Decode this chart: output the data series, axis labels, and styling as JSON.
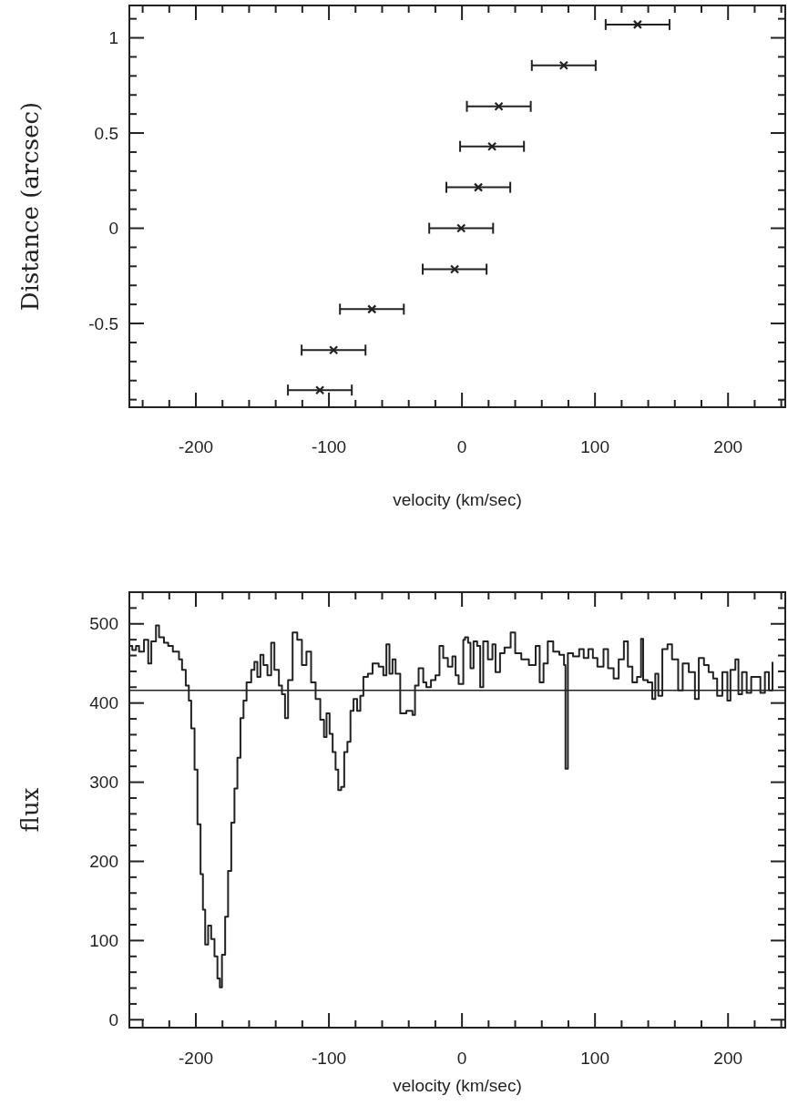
{
  "chart_data": [
    {
      "type": "scatter",
      "xlabel": "velocity (km/sec)",
      "ylabel": "Distance (arcsec)",
      "marker": "cross",
      "color": "#222222",
      "x": [
        132,
        76.5,
        27.7,
        22.6,
        12.3,
        -0.6,
        -5.5,
        -67.7,
        -96.5,
        -106.8
      ],
      "values": [
        1.07,
        0.855,
        0.64,
        0.43,
        0.215,
        0,
        -0.215,
        -0.425,
        -0.64,
        -0.85
      ],
      "xerrors": [
        24,
        24,
        24,
        24,
        24,
        24,
        24,
        24,
        24,
        24
      ],
      "xlim": [
        -250,
        243
      ],
      "ylim": [
        -0.94,
        1.17
      ],
      "xticks": [
        {
          "value": -240,
          "label": null
        },
        {
          "value": -220,
          "label": null
        },
        -200,
        {
          "value": -180,
          "label": null
        },
        {
          "value": -160,
          "label": null
        },
        {
          "value": -140,
          "label": null
        },
        {
          "value": -120,
          "label": null
        },
        -100,
        {
          "value": -80,
          "label": null
        },
        {
          "value": -60,
          "label": null
        },
        {
          "value": -40,
          "label": null
        },
        {
          "value": -20,
          "label": null
        },
        0,
        {
          "value": 20,
          "label": null
        },
        {
          "value": 40,
          "label": null
        },
        {
          "value": 60,
          "label": null
        },
        {
          "value": 80,
          "label": null
        },
        100,
        {
          "value": 120,
          "label": null
        },
        {
          "value": 140,
          "label": null
        },
        {
          "value": 160,
          "label": null
        },
        {
          "value": 180,
          "label": null
        },
        200,
        {
          "value": 220,
          "label": null
        },
        {
          "value": 240,
          "label": null
        }
      ],
      "yticks": [
        {
          "value": -0.9,
          "label": null
        },
        {
          "value": -0.8,
          "label": null
        },
        {
          "value": -0.7,
          "label": null
        },
        {
          "value": -0.6,
          "label": null
        },
        -0.5,
        {
          "value": -0.4,
          "label": null
        },
        {
          "value": -0.3,
          "label": null
        },
        {
          "value": -0.2,
          "label": null
        },
        {
          "value": -0.1,
          "label": null
        },
        0,
        {
          "value": 0.1,
          "label": null
        },
        {
          "value": 0.2,
          "label": null
        },
        {
          "value": 0.3,
          "label": null
        },
        {
          "value": 0.4,
          "label": null
        },
        0.5,
        {
          "value": 0.6,
          "label": null
        },
        {
          "value": 0.7,
          "label": null
        },
        {
          "value": 0.8,
          "label": null
        },
        {
          "value": 0.9,
          "label": null
        },
        1,
        {
          "value": 1.1,
          "label": null
        }
      ]
    },
    {
      "type": "step",
      "xlabel": "velocity (km/sec)",
      "ylabel": "flux",
      "color": "#222222",
      "x": [
        -249.7,
        -247.8,
        -245,
        -242.7,
        -239,
        -235.8,
        -233.5,
        -230,
        -227.7,
        -224,
        -220.8,
        -217.3,
        -212.7,
        -210.4,
        -207.6,
        -205.3,
        -203.5,
        -201,
        -198.8,
        -196.5,
        -194.7,
        -193,
        -190.8,
        -188.5,
        -186,
        -183.8,
        -182,
        -180.4,
        -178,
        -175.8,
        -173.4,
        -171,
        -168.8,
        -166.5,
        -164.2,
        -161.9,
        -158.4,
        -156,
        -153.8,
        -151.5,
        -149.2,
        -146.2,
        -143.4,
        -141,
        -137.6,
        -135.3,
        -133,
        -130.7,
        -127.3,
        -123.8,
        -120.3,
        -116.9,
        -113.4,
        -110,
        -106.5,
        -103.7,
        -101.8,
        -99.5,
        -97.2,
        -95,
        -93,
        -90.8,
        -88.5,
        -86.1,
        -83.8,
        -81.5,
        -78.8,
        -76.4,
        -74.1,
        -70.7,
        -67.2,
        -62.6,
        -59.1,
        -56.8,
        -54.5,
        -52.2,
        -49.9,
        -46.4,
        -41.8,
        -37.2,
        -35.3,
        -32.6,
        -29.1,
        -26.8,
        -23.3,
        -19.9,
        -16.9,
        -14.1,
        -10.6,
        -7.2,
        -4.8,
        -2.5,
        1,
        2.3,
        4.6,
        6.4,
        8.7,
        11.4,
        13.7,
        16,
        19.5,
        22.9,
        25.2,
        28.6,
        32,
        36.6,
        40,
        44.6,
        50.3,
        55.4,
        58.4,
        61.3,
        64.5,
        68.6,
        73.2,
        76.7,
        77.8,
        79.6,
        83.5,
        88.1,
        91.5,
        95,
        98.4,
        101.8,
        106.4,
        109.8,
        114,
        117.8,
        121.7,
        124.7,
        128.1,
        131.6,
        134.6,
        136.2,
        139.6,
        143,
        145.3,
        147.6,
        150.6,
        154.5,
        157.9,
        162.5,
        165.9,
        170.5,
        175.1,
        178,
        181.9,
        185.4,
        188.8,
        191.8,
        195.7,
        199.5,
        201.8,
        205.5,
        207.8,
        210.5,
        214,
        217.4,
        221.5,
        224.3,
        227.7,
        230.7,
        233.4
      ],
      "values": [
        472,
        467,
        472,
        465,
        480,
        450,
        478,
        498,
        483,
        476,
        472,
        465,
        455,
        442,
        422,
        403,
        368,
        316,
        247,
        184,
        139,
        95,
        119,
        102,
        80,
        52,
        41,
        82,
        130,
        188,
        249,
        292,
        331,
        381,
        403,
        426,
        442,
        452,
        433,
        461,
        448,
        435,
        476,
        442,
        422,
        411,
        381,
        429,
        489,
        480,
        448,
        465,
        426,
        405,
        379,
        357,
        387,
        361,
        338,
        316,
        290,
        294,
        338,
        351,
        390,
        405,
        390,
        409,
        433,
        437,
        450,
        446,
        435,
        474,
        437,
        455,
        437,
        387,
        390,
        385,
        422,
        444,
        426,
        420,
        429,
        435,
        472,
        457,
        446,
        459,
        435,
        424,
        480,
        483,
        476,
        444,
        478,
        472,
        420,
        478,
        455,
        474,
        439,
        463,
        470,
        489,
        463,
        455,
        448,
        472,
        426,
        450,
        478,
        465,
        461,
        448,
        317,
        463,
        459,
        468,
        457,
        468,
        457,
        446,
        468,
        444,
        431,
        455,
        478,
        446,
        426,
        433,
        481,
        429,
        426,
        405,
        437,
        409,
        468,
        474,
        455,
        416,
        450,
        439,
        405,
        457,
        448,
        439,
        431,
        409,
        439,
        403,
        442,
        455,
        411,
        439,
        413,
        433,
        433,
        413,
        439,
        416,
        452
      ],
      "ref_lines": [
        {
          "axis": "y",
          "value": 416
        }
      ],
      "xlim": [
        -250,
        243
      ],
      "ylim": [
        -10,
        540
      ],
      "xticks": [
        {
          "value": -240,
          "label": null
        },
        {
          "value": -220,
          "label": null
        },
        -200,
        {
          "value": -180,
          "label": null
        },
        {
          "value": -160,
          "label": null
        },
        {
          "value": -140,
          "label": null
        },
        {
          "value": -120,
          "label": null
        },
        -100,
        {
          "value": -80,
          "label": null
        },
        {
          "value": -60,
          "label": null
        },
        {
          "value": -40,
          "label": null
        },
        {
          "value": -20,
          "label": null
        },
        0,
        {
          "value": 20,
          "label": null
        },
        {
          "value": 40,
          "label": null
        },
        {
          "value": 60,
          "label": null
        },
        {
          "value": 80,
          "label": null
        },
        100,
        {
          "value": 120,
          "label": null
        },
        {
          "value": 140,
          "label": null
        },
        {
          "value": 160,
          "label": null
        },
        {
          "value": 180,
          "label": null
        },
        200,
        {
          "value": 220,
          "label": null
        },
        {
          "value": 240,
          "label": null
        }
      ],
      "yticks": [
        0,
        {
          "value": 20,
          "label": null
        },
        {
          "value": 40,
          "label": null
        },
        {
          "value": 60,
          "label": null
        },
        {
          "value": 80,
          "label": null
        },
        100,
        {
          "value": 120,
          "label": null
        },
        {
          "value": 140,
          "label": null
        },
        {
          "value": 160,
          "label": null
        },
        {
          "value": 180,
          "label": null
        },
        200,
        {
          "value": 220,
          "label": null
        },
        {
          "value": 240,
          "label": null
        },
        {
          "value": 260,
          "label": null
        },
        {
          "value": 280,
          "label": null
        },
        300,
        {
          "value": 320,
          "label": null
        },
        {
          "value": 340,
          "label": null
        },
        {
          "value": 360,
          "label": null
        },
        {
          "value": 380,
          "label": null
        },
        400,
        {
          "value": 420,
          "label": null
        },
        {
          "value": 440,
          "label": null
        },
        {
          "value": 460,
          "label": null
        },
        {
          "value": 480,
          "label": null
        },
        500,
        {
          "value": 520,
          "label": null
        }
      ]
    }
  ]
}
